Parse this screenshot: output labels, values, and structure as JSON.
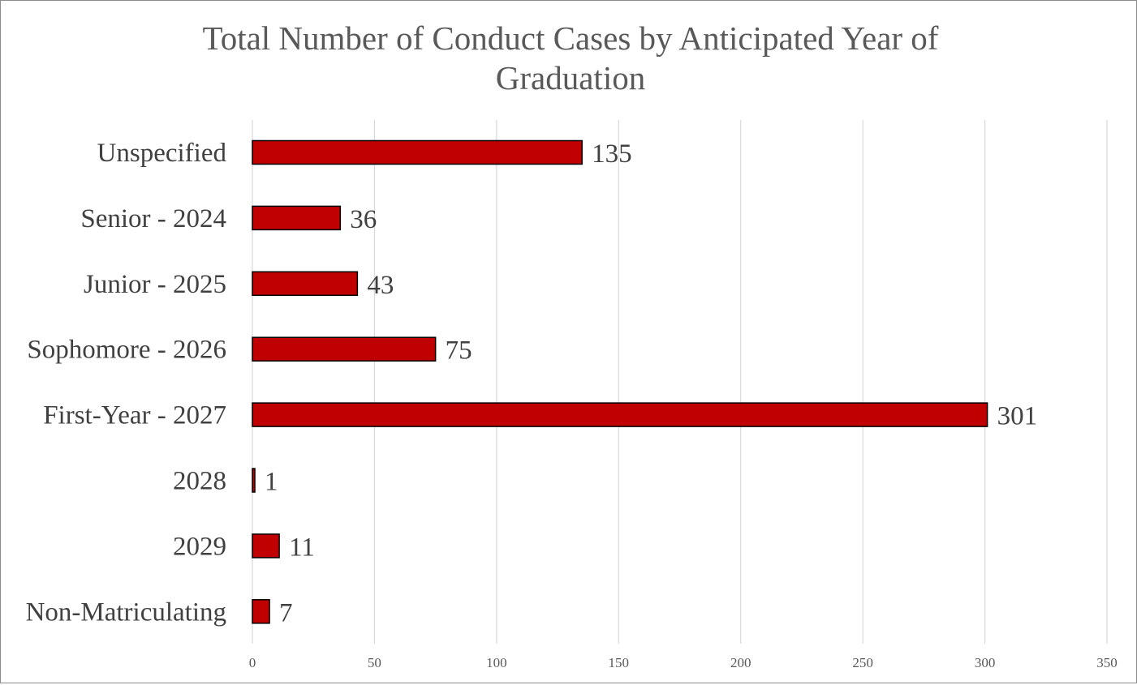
{
  "chart_data": {
    "type": "bar",
    "orientation": "horizontal",
    "title_lines": [
      "Total Number of Conduct Cases by Anticipated Year of",
      "Graduation"
    ],
    "categories": [
      "Unspecified",
      "Senior - 2024",
      "Junior - 2025",
      "Sophomore - 2026",
      "First-Year - 2027",
      "2028",
      "2029",
      "Non-Matriculating"
    ],
    "values": [
      135,
      36,
      43,
      75,
      301,
      1,
      11,
      7
    ],
    "xlim": [
      0,
      350
    ],
    "x_ticks": [
      0,
      50,
      100,
      150,
      200,
      250,
      300,
      350
    ],
    "xlabel": "",
    "ylabel": "",
    "grid": "vertical",
    "data_labels": true,
    "legend": "none",
    "colors": {
      "bar_fill": "#C00000",
      "bar_stroke": "#000000",
      "grid": "#d9d9d9",
      "text": "#404040",
      "title": "#595959"
    }
  }
}
